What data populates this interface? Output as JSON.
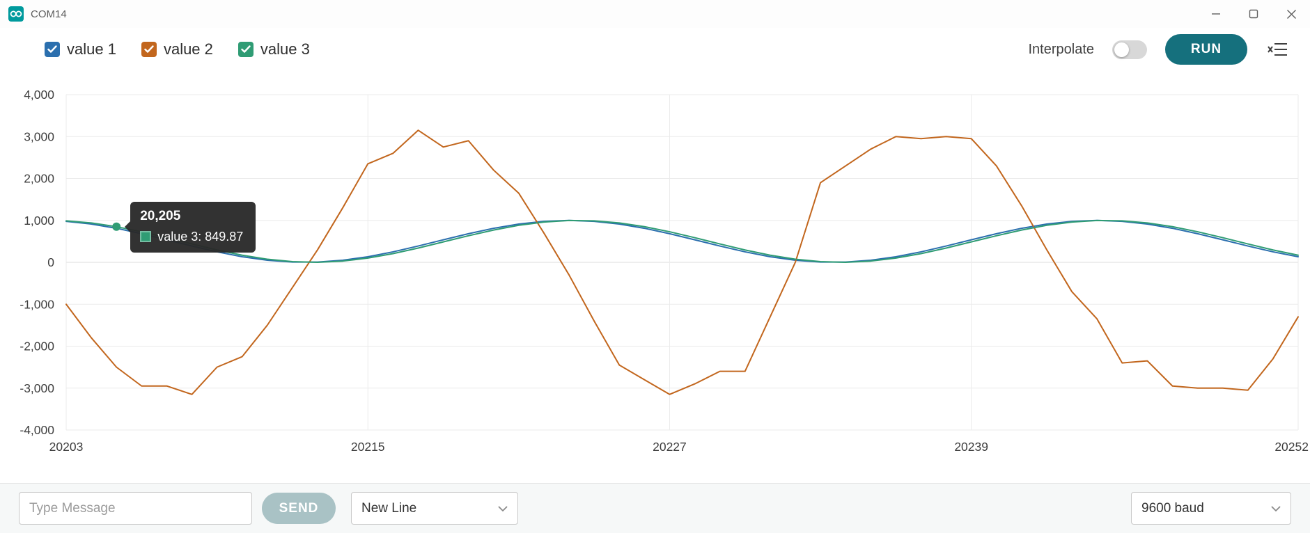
{
  "window": {
    "title": "COM14"
  },
  "icons": {
    "app": "arduino-logo-icon",
    "minimize": "minimize-icon",
    "maximize": "maximize-icon",
    "close": "close-icon",
    "clear": "clear-chart-icon",
    "select_chevron": "chevron-down-icon",
    "legend_check": "checkmark-icon"
  },
  "legend": {
    "items": [
      {
        "label": "value 1",
        "color": "#2b6fae",
        "checked": true
      },
      {
        "label": "value 2",
        "color": "#c2661d",
        "checked": true
      },
      {
        "label": "value 3",
        "color": "#2f9c74",
        "checked": true
      }
    ]
  },
  "toolbar": {
    "interpolate_label": "Interpolate",
    "interpolate_on": false,
    "run_label": "RUN"
  },
  "tooltip": {
    "title": "20,205",
    "series": "value 3",
    "text": "value 3: 849.87",
    "color": "#2f9c74",
    "point": {
      "x": 20205,
      "value": 849.87
    }
  },
  "bottom": {
    "message_placeholder": "Type Message",
    "send_label": "SEND",
    "line_ending": "New Line",
    "baud": "9600 baud"
  },
  "chart_data": {
    "type": "line",
    "title": "",
    "xlabel": "",
    "ylabel": "",
    "grid": true,
    "legend_position": "top-left",
    "xlim": [
      20203,
      20252
    ],
    "ylim": [
      -4000,
      4000
    ],
    "xticks": [
      20203,
      20215,
      20227,
      20239,
      20252
    ],
    "xtick_labels": [
      "20203",
      "20215",
      "20227",
      "20239",
      "20252"
    ],
    "yticks": [
      -4000,
      -3000,
      -2000,
      -1000,
      0,
      1000,
      2000,
      3000,
      4000
    ],
    "ytick_labels": [
      "-4,000",
      "-3,000",
      "-2,000",
      "-1,000",
      "0",
      "1,000",
      "2,000",
      "3,000",
      "4,000"
    ],
    "x": [
      20203,
      20204,
      20205,
      20206,
      20207,
      20208,
      20209,
      20210,
      20211,
      20212,
      20213,
      20214,
      20215,
      20216,
      20217,
      20218,
      20219,
      20220,
      20221,
      20222,
      20223,
      20224,
      20225,
      20226,
      20227,
      20228,
      20229,
      20230,
      20231,
      20232,
      20233,
      20234,
      20235,
      20236,
      20237,
      20238,
      20239,
      20240,
      20241,
      20242,
      20243,
      20244,
      20245,
      20246,
      20247,
      20248,
      20249,
      20250,
      20251,
      20252
    ],
    "series": [
      {
        "name": "value 1",
        "color": "#2b6fae",
        "values": [
          978,
          913,
          812,
          683,
          537,
          389,
          250,
          133,
          50,
          6,
          6,
          50,
          133,
          250,
          389,
          537,
          683,
          812,
          913,
          978,
          1000,
          978,
          913,
          812,
          683,
          537,
          389,
          250,
          133,
          50,
          6,
          6,
          50,
          133,
          250,
          389,
          537,
          683,
          812,
          913,
          978,
          1000,
          978,
          913,
          812,
          683,
          537,
          389,
          250,
          133
        ]
      },
      {
        "name": "value 2",
        "color": "#c2661d",
        "values": [
          -1000,
          -1800,
          -2500,
          -2950,
          -2950,
          -3150,
          -2500,
          -2250,
          -1500,
          -600,
          300,
          1300,
          2350,
          2600,
          3150,
          2750,
          2900,
          2200,
          1650,
          700,
          -300,
          -1400,
          -2450,
          -2800,
          -3150,
          -2900,
          -2600,
          -2600,
          -1300,
          0,
          1900,
          2300,
          2700,
          3000,
          2950,
          3000,
          2950,
          2300,
          1350,
          300,
          -700,
          -1350,
          -2400,
          -2350,
          -2950,
          -3000,
          -3000,
          -3050,
          -2300,
          -1300
        ]
      },
      {
        "name": "value 3",
        "color": "#2f9c74",
        "values": [
          990,
          940,
          849.87,
          729,
          588,
          439,
          295,
          170,
          74,
          16,
          1,
          30,
          101,
          207,
          340,
          487,
          634,
          770,
          883,
          960,
          997,
          990,
          940,
          850,
          729,
          588,
          439,
          295,
          170,
          74,
          16,
          1,
          30,
          101,
          207,
          340,
          487,
          634,
          770,
          883,
          960,
          997,
          990,
          940,
          850,
          729,
          588,
          439,
          295,
          170
        ]
      }
    ]
  }
}
